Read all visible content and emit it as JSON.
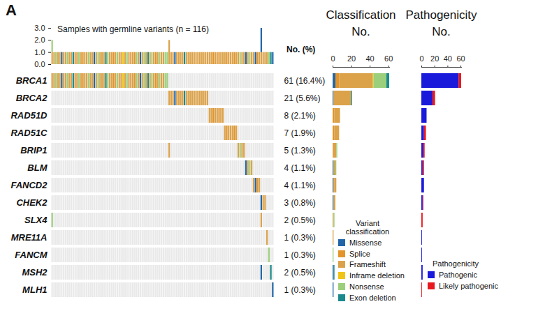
{
  "panel_label": "A",
  "chart_data": [
    {
      "type": "oncoprint",
      "title": "Samples with germline variants (n = 116)",
      "samples": 116,
      "categories": [
        "BRCA1",
        "BRCA2",
        "RAD51D",
        "RAD51C",
        "BRIP1",
        "BLM",
        "FANCD2",
        "CHEK2",
        "SLX4",
        "MRE11A",
        "FANCM",
        "MSH2",
        "MLH1"
      ],
      "frequency_header": "No. (%)",
      "frequency_labels": [
        "61 (16.4%)",
        "21 (5.6%)",
        "8 (2.1%)",
        "7 (1.9%)",
        "5 (1.3%)",
        "4 (1.1%)",
        "4 (1.1%)",
        "3 (0.8%)",
        "2 (0.5%)",
        "1 (0.3%)",
        "1 (0.3%)",
        "2 (0.5%)",
        "1 (0.3%)"
      ],
      "ylim": [
        0,
        3
      ],
      "yticks": [
        0,
        1,
        2,
        3
      ],
      "variants": [
        {
          "gene": "BRCA1",
          "samples": [
            0,
            1,
            2,
            3,
            4,
            5,
            6,
            7,
            8,
            9,
            10,
            11,
            12,
            13,
            14,
            15,
            16,
            17,
            18,
            19,
            20,
            21,
            22,
            23,
            24,
            25,
            26,
            27,
            28,
            29,
            30,
            31,
            32,
            33,
            34,
            35,
            36,
            37,
            38,
            39,
            40,
            41,
            42,
            43,
            44,
            45,
            46,
            47,
            48,
            49,
            50,
            51,
            52,
            53,
            54,
            55,
            56,
            57,
            58,
            59,
            60
          ],
          "classes": [
            "Frameshift",
            "Frameshift",
            "Nonsense",
            "Frameshift",
            "Frameshift",
            "Missense",
            "Frameshift",
            "Frameshift",
            "Nonsense",
            "Frameshift",
            "Frameshift",
            "Exon deletion",
            "Frameshift",
            "Frameshift",
            "Nonsense",
            "Frameshift",
            "Splice",
            "Frameshift",
            "Frameshift",
            "Nonsense",
            "Frameshift",
            "Frameshift",
            "Missense",
            "Frameshift",
            "Nonsense",
            "Frameshift",
            "Frameshift",
            "Frameshift",
            "Exon deletion",
            "Nonsense",
            "Frameshift",
            "Frameshift",
            "Splice",
            "Frameshift",
            "Nonsense",
            "Frameshift",
            "Frameshift",
            "Inframe deletion",
            "Frameshift",
            "Nonsense",
            "Frameshift",
            "Frameshift",
            "Frameshift",
            "Splice",
            "Nonsense",
            "Frameshift",
            "Missense",
            "Frameshift",
            "Nonsense",
            "Frameshift",
            "Exon deletion",
            "Frameshift",
            "Nonsense",
            "Frameshift",
            "Splice",
            "Frameshift",
            "Nonsense",
            "Frameshift",
            "Frameshift",
            "Nonsense",
            "Nonsense"
          ]
        },
        {
          "gene": "BRCA2",
          "samples": [
            61,
            62,
            63,
            64,
            65,
            66,
            67,
            68,
            69,
            70,
            71,
            72,
            73,
            74,
            75,
            76,
            77,
            78,
            79,
            80,
            81
          ],
          "classes": [
            "Frameshift",
            "Frameshift",
            "Frameshift",
            "Missense",
            "Frameshift",
            "Frameshift",
            "Frameshift",
            "Frameshift",
            "Exon deletion",
            "Frameshift",
            "Frameshift",
            "Frameshift",
            "Frameshift",
            "Frameshift",
            "Frameshift",
            "Frameshift",
            "Frameshift",
            "Frameshift",
            "Frameshift",
            "Frameshift",
            "Frameshift"
          ]
        },
        {
          "gene": "RAD51D",
          "samples": [
            82,
            83,
            84,
            85,
            86,
            87,
            88,
            89
          ],
          "classes": [
            "Frameshift",
            "Frameshift",
            "Splice",
            "Frameshift",
            "Frameshift",
            "Splice",
            "Frameshift",
            "Frameshift"
          ]
        },
        {
          "gene": "RAD51C",
          "samples": [
            90,
            91,
            92,
            93,
            94,
            95,
            96
          ],
          "classes": [
            "Frameshift",
            "Splice",
            "Frameshift",
            "Frameshift",
            "Frameshift",
            "Splice",
            "Frameshift"
          ]
        },
        {
          "gene": "BRIP1",
          "samples": [
            61,
            97,
            98,
            99,
            100
          ],
          "classes": [
            "Frameshift",
            "Frameshift",
            "Nonsense",
            "Frameshift",
            "Frameshift"
          ]
        },
        {
          "gene": "BLM",
          "samples": [
            101,
            102,
            103,
            104
          ],
          "classes": [
            "Missense",
            "Frameshift",
            "Nonsense",
            "Frameshift"
          ]
        },
        {
          "gene": "FANCD2",
          "samples": [
            105,
            106,
            107,
            108
          ],
          "classes": [
            "Frameshift",
            "Missense",
            "Splice",
            "Frameshift"
          ]
        },
        {
          "gene": "CHEK2",
          "samples": [
            109,
            110,
            111
          ],
          "classes": [
            "Missense",
            "Frameshift",
            "Frameshift"
          ]
        },
        {
          "gene": "SLX4",
          "samples": [
            0,
            109
          ],
          "classes": [
            "Nonsense",
            "Frameshift"
          ]
        },
        {
          "gene": "MRE11A",
          "samples": [
            112
          ],
          "classes": [
            "Frameshift"
          ]
        },
        {
          "gene": "FANCM",
          "samples": [
            113
          ],
          "classes": [
            "Nonsense"
          ]
        },
        {
          "gene": "MSH2",
          "samples": [
            109,
            114
          ],
          "classes": [
            "Missense",
            "Exon deletion"
          ]
        },
        {
          "gene": "MLH1",
          "samples": [
            115
          ],
          "classes": [
            "Missense"
          ]
        }
      ]
    },
    {
      "type": "bar",
      "title": "Classification",
      "subtitle": "No.",
      "orientation": "horizontal",
      "stacked": true,
      "categories": [
        "BRCA1",
        "BRCA2",
        "RAD51D",
        "RAD51C",
        "BRIP1",
        "BLM",
        "FANCD2",
        "CHEK2",
        "SLX4",
        "MRE11A",
        "FANCM",
        "MSH2",
        "MLH1"
      ],
      "xlim": [
        0,
        61
      ],
      "xticks": [
        0,
        20,
        40,
        60
      ],
      "legend_title": "Variant classification",
      "series": [
        {
          "name": "Missense",
          "color": "#2266a8",
          "values": [
            3,
            1,
            0,
            0,
            0,
            1,
            1,
            1,
            0,
            0,
            0,
            1,
            1
          ]
        },
        {
          "name": "Splice",
          "color": "#e3942a",
          "values": [
            4,
            0,
            2,
            2,
            0,
            0,
            1,
            0,
            0,
            0,
            0,
            0,
            0
          ]
        },
        {
          "name": "Frameshift",
          "color": "#dba24a",
          "values": [
            36,
            19,
            6,
            5,
            4,
            2,
            2,
            2,
            1,
            1,
            0,
            0,
            0
          ]
        },
        {
          "name": "Inframe deletion",
          "color": "#f0c414",
          "values": [
            1,
            0,
            0,
            0,
            0,
            0,
            0,
            0,
            0,
            0,
            0,
            0,
            0
          ]
        },
        {
          "name": "Nonsense",
          "color": "#9ccf7c",
          "values": [
            14,
            0,
            0,
            0,
            1,
            1,
            0,
            0,
            1,
            0,
            1,
            0,
            0
          ]
        },
        {
          "name": "Exon deletion",
          "color": "#1b8a8c",
          "values": [
            3,
            1,
            0,
            0,
            0,
            0,
            0,
            0,
            0,
            0,
            0,
            1,
            0
          ]
        }
      ]
    },
    {
      "type": "bar",
      "title": "Pathogenicity",
      "subtitle": "No.",
      "orientation": "horizontal",
      "stacked": true,
      "categories": [
        "BRCA1",
        "BRCA2",
        "RAD51D",
        "RAD51C",
        "BRIP1",
        "BLM",
        "FANCD2",
        "CHEK2",
        "SLX4",
        "MRE11A",
        "FANCM",
        "MSH2",
        "MLH1"
      ],
      "xlim": [
        0,
        61
      ],
      "xticks": [
        0,
        20,
        40,
        60
      ],
      "legend_title": "Pathogenicity",
      "series": [
        {
          "name": "Pathogenic",
          "color": "#1a1adb",
          "values": [
            57,
            17,
            8,
            4,
            3,
            2,
            4,
            2,
            0,
            1,
            1,
            2,
            0
          ]
        },
        {
          "name": "Likely pathogenic",
          "color": "#e8191e",
          "values": [
            4,
            4,
            0,
            3,
            2,
            2,
            0,
            1,
            2,
            0,
            0,
            0,
            1
          ]
        }
      ]
    }
  ]
}
